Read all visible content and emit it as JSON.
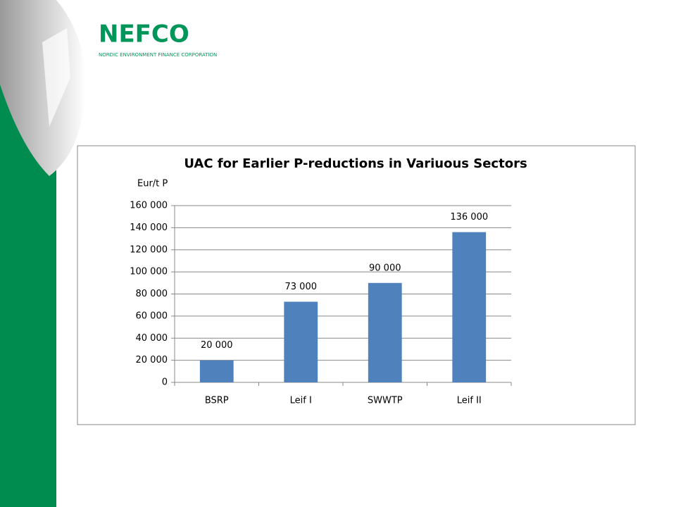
{
  "logo": {
    "name": "NEFCO",
    "subtitle": "NORDIC ENVIRONMENT FINANCE CORPORATION"
  },
  "chart_data": {
    "type": "bar",
    "title": "UAC for Earlier P-reductions in Variuous Sectors",
    "y_label": "Eur/t P",
    "categories": [
      "BSRP",
      "Leif I",
      "SWWTP",
      "Leif II"
    ],
    "values": [
      20000,
      73000,
      90000,
      136000
    ],
    "value_labels": [
      "20 000",
      "73 000",
      "90 000",
      "136 000"
    ],
    "color": "#4f81bd",
    "ylim": [
      0,
      160000
    ],
    "yticks": [
      0,
      {
        "value": 20000,
        "label": "20 000"
      },
      {
        "value": 40000,
        "label": "40 000"
      },
      {
        "value": 60000,
        "label": "60 000"
      },
      {
        "value": 80000,
        "label": "80 000"
      },
      {
        "value": 100000,
        "label": "100 000"
      },
      {
        "value": 120000,
        "label": "120 000"
      },
      {
        "value": 140000,
        "label": "140 000"
      },
      {
        "value": 160000,
        "label": "160 000"
      }
    ],
    "grid": true
  }
}
